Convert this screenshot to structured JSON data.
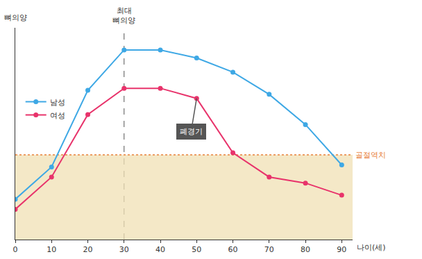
{
  "chart_data": {
    "type": "line",
    "y_label": "뼈의양",
    "x_label": "나이(세)",
    "x": [
      0,
      10,
      20,
      30,
      40,
      50,
      60,
      70,
      80,
      90
    ],
    "series": [
      {
        "name": "남성",
        "color": "#3ea8e5",
        "marker": "circle",
        "values": [
          20,
          36,
          74,
          94,
          94,
          90,
          83,
          72,
          57,
          37
        ]
      },
      {
        "name": "여성",
        "color": "#e8336b",
        "marker": "circle",
        "values": [
          15,
          31,
          62,
          75,
          75,
          70,
          43,
          31,
          28,
          22
        ]
      }
    ],
    "xlim": [
      0,
      93
    ],
    "xticks": [
      0,
      10,
      20,
      30,
      40,
      50,
      60,
      70,
      80,
      90
    ],
    "ylim": [
      0,
      105
    ],
    "yticks": [],
    "tick_labels": "x",
    "grid": false,
    "legend": "left",
    "reference_lines": [
      {
        "axis": "x",
        "value": 30,
        "label": "최대\n뼈의양",
        "color": "#555555",
        "line_style": "dash"
      },
      {
        "axis": "y",
        "value": 42,
        "label": "골절역치",
        "color": "#e8803a",
        "line_style": "dot",
        "fill_below": true
      }
    ],
    "annotations": [
      {
        "text": "폐경기",
        "x": 50,
        "series": "여성"
      }
    ]
  }
}
